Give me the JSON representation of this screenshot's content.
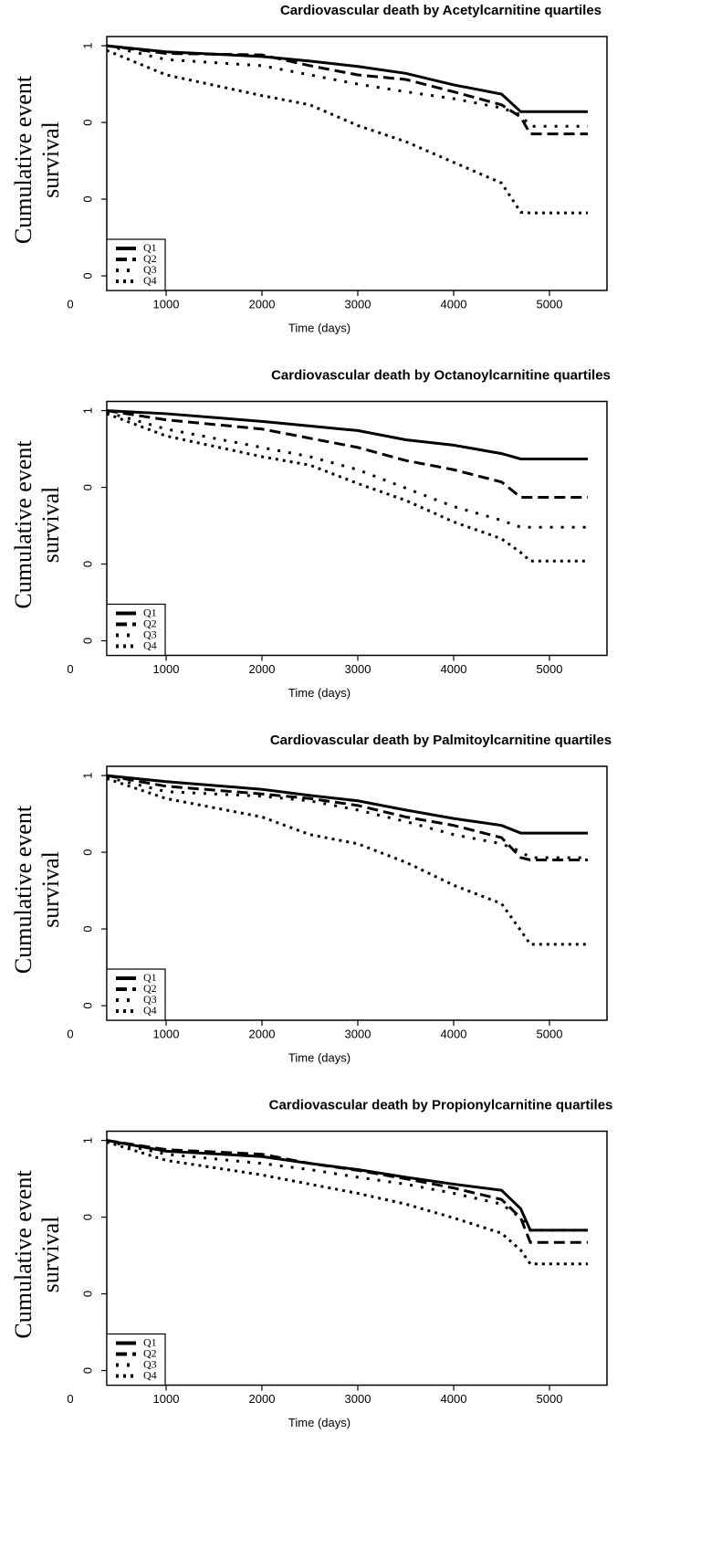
{
  "chart_data": [
    {
      "type": "line",
      "title": "Cardiovascular death by Acetylcarnitine quartiles",
      "x_label": "Time (days)",
      "y_label": [
        "Cumulative event",
        "survival"
      ],
      "x": [
        380,
        1000,
        2000,
        2500,
        3000,
        3500,
        4000,
        4500,
        4700,
        4800,
        5400
      ],
      "series": [
        {
          "name": "Q1",
          "color": "#000000",
          "linestyle": "solid",
          "values": [
            1,
            0.992,
            0.986,
            0.98,
            0.973,
            0.964,
            0.949,
            0.937,
            0.914,
            0.914,
            0.914
          ]
        },
        {
          "name": "Q2",
          "color": "#000000",
          "linestyle": "dashed",
          "values": [
            1,
            0.99,
            0.988,
            0.974,
            0.962,
            0.956,
            0.94,
            0.923,
            0.907,
            0.885,
            0.885
          ]
        },
        {
          "name": "Q3",
          "color": "#000000",
          "linestyle": "dotted",
          "values": [
            1,
            0.982,
            0.974,
            0.962,
            0.95,
            0.94,
            0.931,
            0.919,
            0.91,
            0.895,
            0.895
          ]
        },
        {
          "name": "Q4",
          "color": "#000000",
          "linestyle": "dense-dotted",
          "values": [
            0.994,
            0.962,
            0.935,
            0.923,
            0.896,
            0.875,
            0.848,
            0.821,
            0.783,
            0.782,
            0.782
          ]
        }
      ],
      "xlim": [
        381,
        5600
      ],
      "ylim": [
        0.681,
        1.012
      ],
      "xticks": [
        0,
        1000,
        2000,
        3000,
        4000,
        5000
      ],
      "yticks": [
        1,
        {
          "value": 0.9,
          "label": "0"
        },
        {
          "value": 0.8,
          "label": "0"
        },
        {
          "value": 0.7,
          "label": "0"
        }
      ],
      "legend": "lower left"
    },
    {
      "type": "line",
      "title": "Cardiovascular death by Octanoylcarnitine quartiles",
      "x_label": "Time (days)",
      "y_label": [
        "Cumulative event",
        "survival"
      ],
      "x": [
        380,
        1000,
        2000,
        2500,
        3000,
        3500,
        4000,
        4500,
        4700,
        4800,
        5400
      ],
      "series": [
        {
          "name": "Q1",
          "color": "#000000",
          "linestyle": "solid",
          "values": [
            1,
            0.996,
            0.986,
            0.98,
            0.974,
            0.962,
            0.955,
            0.944,
            0.937,
            0.937,
            0.937
          ]
        },
        {
          "name": "Q2",
          "color": "#000000",
          "linestyle": "dashed",
          "values": [
            1,
            0.988,
            0.976,
            0.964,
            0.952,
            0.935,
            0.923,
            0.907,
            0.887,
            0.887,
            0.887
          ]
        },
        {
          "name": "Q3",
          "color": "#000000",
          "linestyle": "dotted",
          "values": [
            0.998,
            0.976,
            0.952,
            0.94,
            0.923,
            0.899,
            0.875,
            0.857,
            0.848,
            0.848,
            0.848
          ]
        },
        {
          "name": "Q4",
          "color": "#000000",
          "linestyle": "dense-dotted",
          "values": [
            0.996,
            0.967,
            0.94,
            0.929,
            0.905,
            0.883,
            0.855,
            0.833,
            0.815,
            0.804,
            0.804
          ]
        }
      ],
      "xlim": [
        381,
        5600
      ],
      "ylim": [
        0.681,
        1.012
      ],
      "xticks": [
        0,
        1000,
        2000,
        3000,
        4000,
        5000
      ],
      "yticks": [
        1,
        {
          "value": 0.9,
          "label": "0"
        },
        {
          "value": 0.8,
          "label": "0"
        },
        {
          "value": 0.7,
          "label": "0"
        }
      ],
      "legend": "lower left"
    },
    {
      "type": "line",
      "title": "Cardiovascular death by Palmitoylcarnitine quartiles",
      "x_label": "Time (days)",
      "y_label": [
        "Cumulative event",
        "survival"
      ],
      "x": [
        380,
        1000,
        2000,
        2500,
        3000,
        3500,
        4000,
        4500,
        4700,
        4800,
        5400
      ],
      "series": [
        {
          "name": "Q1",
          "color": "#000000",
          "linestyle": "solid",
          "values": [
            1,
            0.992,
            0.982,
            0.974,
            0.967,
            0.955,
            0.944,
            0.935,
            0.925,
            0.925,
            0.925
          ]
        },
        {
          "name": "Q2",
          "color": "#000000",
          "linestyle": "dashed",
          "values": [
            1,
            0.986,
            0.976,
            0.97,
            0.961,
            0.946,
            0.935,
            0.919,
            0.893,
            0.89,
            0.89
          ]
        },
        {
          "name": "Q3",
          "color": "#000000",
          "linestyle": "dotted",
          "values": [
            0.998,
            0.979,
            0.973,
            0.967,
            0.955,
            0.94,
            0.923,
            0.911,
            0.901,
            0.893,
            0.893
          ]
        },
        {
          "name": "Q4",
          "color": "#000000",
          "linestyle": "dense-dotted",
          "values": [
            0.996,
            0.97,
            0.946,
            0.923,
            0.911,
            0.887,
            0.857,
            0.833,
            0.798,
            0.78,
            0.78
          ]
        }
      ],
      "xlim": [
        381,
        5600
      ],
      "ylim": [
        0.681,
        1.012
      ],
      "xticks": [
        0,
        1000,
        2000,
        3000,
        4000,
        5000
      ],
      "yticks": [
        1,
        {
          "value": 0.9,
          "label": "0"
        },
        {
          "value": 0.8,
          "label": "0"
        },
        {
          "value": 0.7,
          "label": "0"
        }
      ],
      "legend": "lower left"
    },
    {
      "type": "line",
      "title": "Cardiovascular death by Propionylcarnitine quartiles",
      "x_label": "Time (days)",
      "y_label": [
        "Cumulative event",
        "survival"
      ],
      "x": [
        380,
        1000,
        2000,
        2500,
        3000,
        3500,
        4000,
        4500,
        4700,
        4800,
        5400
      ],
      "series": [
        {
          "name": "Q1",
          "color": "#000000",
          "linestyle": "solid",
          "values": [
            1,
            0.986,
            0.979,
            0.97,
            0.962,
            0.952,
            0.943,
            0.935,
            0.911,
            0.883,
            0.883
          ]
        },
        {
          "name": "Q2",
          "color": "#000000",
          "linestyle": "dashed",
          "values": [
            1,
            0.988,
            0.982,
            0.97,
            0.961,
            0.95,
            0.938,
            0.923,
            0.899,
            0.867,
            0.867
          ]
        },
        {
          "name": "Q3",
          "color": "#000000",
          "linestyle": "dotted",
          "values": [
            0.999,
            0.982,
            0.97,
            0.962,
            0.952,
            0.943,
            0.931,
            0.917,
            0.899,
            0.883,
            0.883
          ]
        },
        {
          "name": "Q4",
          "color": "#000000",
          "linestyle": "dense-dotted",
          "values": [
            0.998,
            0.974,
            0.955,
            0.943,
            0.931,
            0.917,
            0.899,
            0.879,
            0.857,
            0.839,
            0.839
          ]
        }
      ],
      "xlim": [
        381,
        5600
      ],
      "ylim": [
        0.681,
        1.012
      ],
      "xticks": [
        0,
        1000,
        2000,
        3000,
        4000,
        5000
      ],
      "yticks": [
        1,
        {
          "value": 0.9,
          "label": "0"
        },
        {
          "value": 0.8,
          "label": "0"
        },
        {
          "value": 0.7,
          "label": "0"
        }
      ],
      "legend": "lower left"
    }
  ]
}
